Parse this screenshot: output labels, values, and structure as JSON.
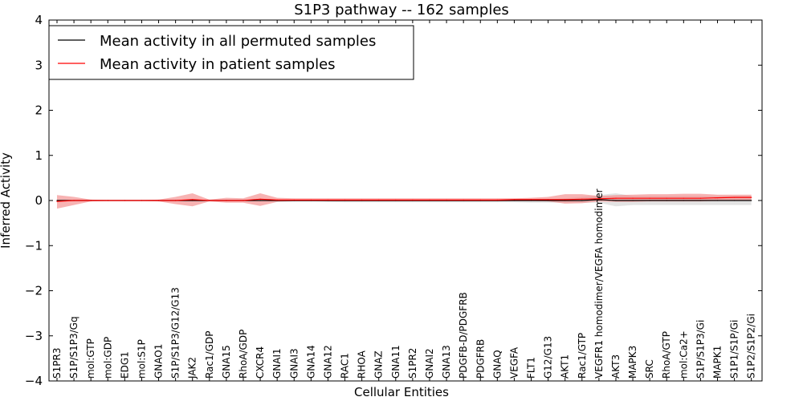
{
  "chart_data": {
    "type": "line",
    "title": "S1P3 pathway -- 162 samples",
    "xlabel": "Cellular Entities",
    "ylabel": "Inferred Activity",
    "ylim": [
      -4,
      4
    ],
    "yticks": [
      -4,
      -3,
      -2,
      -1,
      0,
      1,
      2,
      3,
      4
    ],
    "ytick_labels": [
      "−4",
      "−3",
      "−2",
      "−1",
      "0",
      "1",
      "2",
      "3",
      "4"
    ],
    "grid": false,
    "legend_position": "top-left",
    "categories": [
      "S1PR3",
      "S1P/S1P3/Gq",
      "mol:GTP",
      "mol:GDP",
      "EDG1",
      "mol:S1P",
      "GNAO1",
      "S1P/S1P3/G12/G13",
      "JAK2",
      "Rac1/GDP",
      "GNA15",
      "RhoA/GDP",
      "CXCR4",
      "GNAI1",
      "GNAI3",
      "GNA14",
      "GNA12",
      "RAC1",
      "RHOA",
      "GNAZ",
      "GNA11",
      "S1PR2",
      "GNAI2",
      "GNA13",
      "PDGFB-D/PDGFRB",
      "PDGFRB",
      "GNAQ",
      "VEGFA",
      "FLT1",
      "G12/G13",
      "AKT1",
      "Rac1/GTP",
      "VEGFR1 homodimer/VEGFA homodimer",
      "AKT3",
      "MAPK3",
      "SRC",
      "RhoA/GTP",
      "mol:Ca2+",
      "S1P/S1P3/Gi",
      "MAPK1",
      "S1P1/S1P/Gi",
      "S1P2/S1P2/Gi"
    ],
    "series": [
      {
        "name": "Mean activity in all permuted samples",
        "color": "#000000",
        "band_color": "#cccccc",
        "values": [
          0.0,
          0.0,
          0.0,
          0.0,
          0.0,
          0.0,
          0.0,
          0.0,
          0.0,
          0.0,
          0.0,
          0.0,
          0.0,
          0.0,
          0.0,
          0.0,
          0.0,
          0.0,
          0.0,
          0.0,
          0.0,
          0.0,
          0.0,
          0.0,
          0.0,
          0.0,
          0.0,
          0.0,
          0.0,
          0.0,
          0.0,
          0.0,
          0.02,
          0.0,
          0.0,
          0.0,
          0.0,
          0.0,
          0.0,
          0.0,
          0.0,
          0.0
        ],
        "upper": [
          0.02,
          0.01,
          0.01,
          0.01,
          0.01,
          0.01,
          0.01,
          0.01,
          0.01,
          0.01,
          0.01,
          0.01,
          0.01,
          0.01,
          0.01,
          0.01,
          0.01,
          0.01,
          0.01,
          0.01,
          0.01,
          0.01,
          0.01,
          0.01,
          0.01,
          0.01,
          0.01,
          0.01,
          0.01,
          0.02,
          0.05,
          0.08,
          0.12,
          0.16,
          0.1,
          0.1,
          0.1,
          0.1,
          0.1,
          0.1,
          0.1,
          0.1
        ],
        "lower": [
          -0.02,
          -0.01,
          -0.01,
          -0.01,
          -0.01,
          -0.01,
          -0.01,
          -0.01,
          -0.01,
          -0.01,
          -0.01,
          -0.01,
          -0.01,
          -0.01,
          -0.01,
          -0.01,
          -0.03,
          -0.04,
          -0.04,
          -0.04,
          -0.04,
          -0.04,
          -0.04,
          -0.04,
          -0.04,
          -0.04,
          -0.04,
          -0.04,
          -0.05,
          -0.05,
          -0.05,
          -0.05,
          -0.05,
          -0.13,
          -0.1,
          -0.1,
          -0.1,
          -0.1,
          -0.1,
          -0.1,
          -0.1,
          -0.1
        ]
      },
      {
        "name": "Mean activity in patient samples",
        "color": "#ff0000",
        "band_color": "#f28b8b",
        "values": [
          -0.02,
          0.0,
          0.0,
          0.0,
          0.0,
          0.0,
          0.0,
          0.0,
          0.02,
          0.0,
          0.0,
          0.0,
          0.03,
          0.01,
          0.01,
          0.01,
          0.01,
          0.01,
          0.01,
          0.01,
          0.01,
          0.01,
          0.01,
          0.01,
          0.01,
          0.01,
          0.01,
          0.02,
          0.02,
          0.02,
          0.02,
          0.03,
          0.04,
          0.05,
          0.05,
          0.05,
          0.05,
          0.05,
          0.05,
          0.06,
          0.07,
          0.07
        ],
        "upper": [
          0.12,
          0.08,
          0.02,
          0.01,
          0.01,
          0.01,
          0.02,
          0.08,
          0.16,
          0.02,
          0.06,
          0.05,
          0.16,
          0.06,
          0.05,
          0.05,
          0.05,
          0.05,
          0.05,
          0.05,
          0.05,
          0.05,
          0.05,
          0.05,
          0.05,
          0.05,
          0.05,
          0.05,
          0.06,
          0.08,
          0.14,
          0.14,
          0.1,
          0.12,
          0.13,
          0.14,
          0.14,
          0.15,
          0.15,
          0.13,
          0.13,
          0.13
        ],
        "lower": [
          -0.18,
          -0.1,
          -0.02,
          -0.01,
          -0.01,
          -0.01,
          -0.02,
          -0.08,
          -0.13,
          -0.02,
          -0.05,
          -0.05,
          -0.12,
          -0.03,
          -0.02,
          -0.02,
          -0.02,
          -0.02,
          -0.02,
          -0.02,
          -0.02,
          -0.02,
          -0.02,
          -0.02,
          -0.02,
          -0.02,
          -0.02,
          -0.01,
          -0.01,
          -0.02,
          -0.07,
          -0.06,
          -0.02,
          -0.03,
          -0.03,
          -0.02,
          -0.02,
          -0.02,
          -0.02,
          -0.01,
          0.0,
          0.0
        ]
      }
    ]
  }
}
